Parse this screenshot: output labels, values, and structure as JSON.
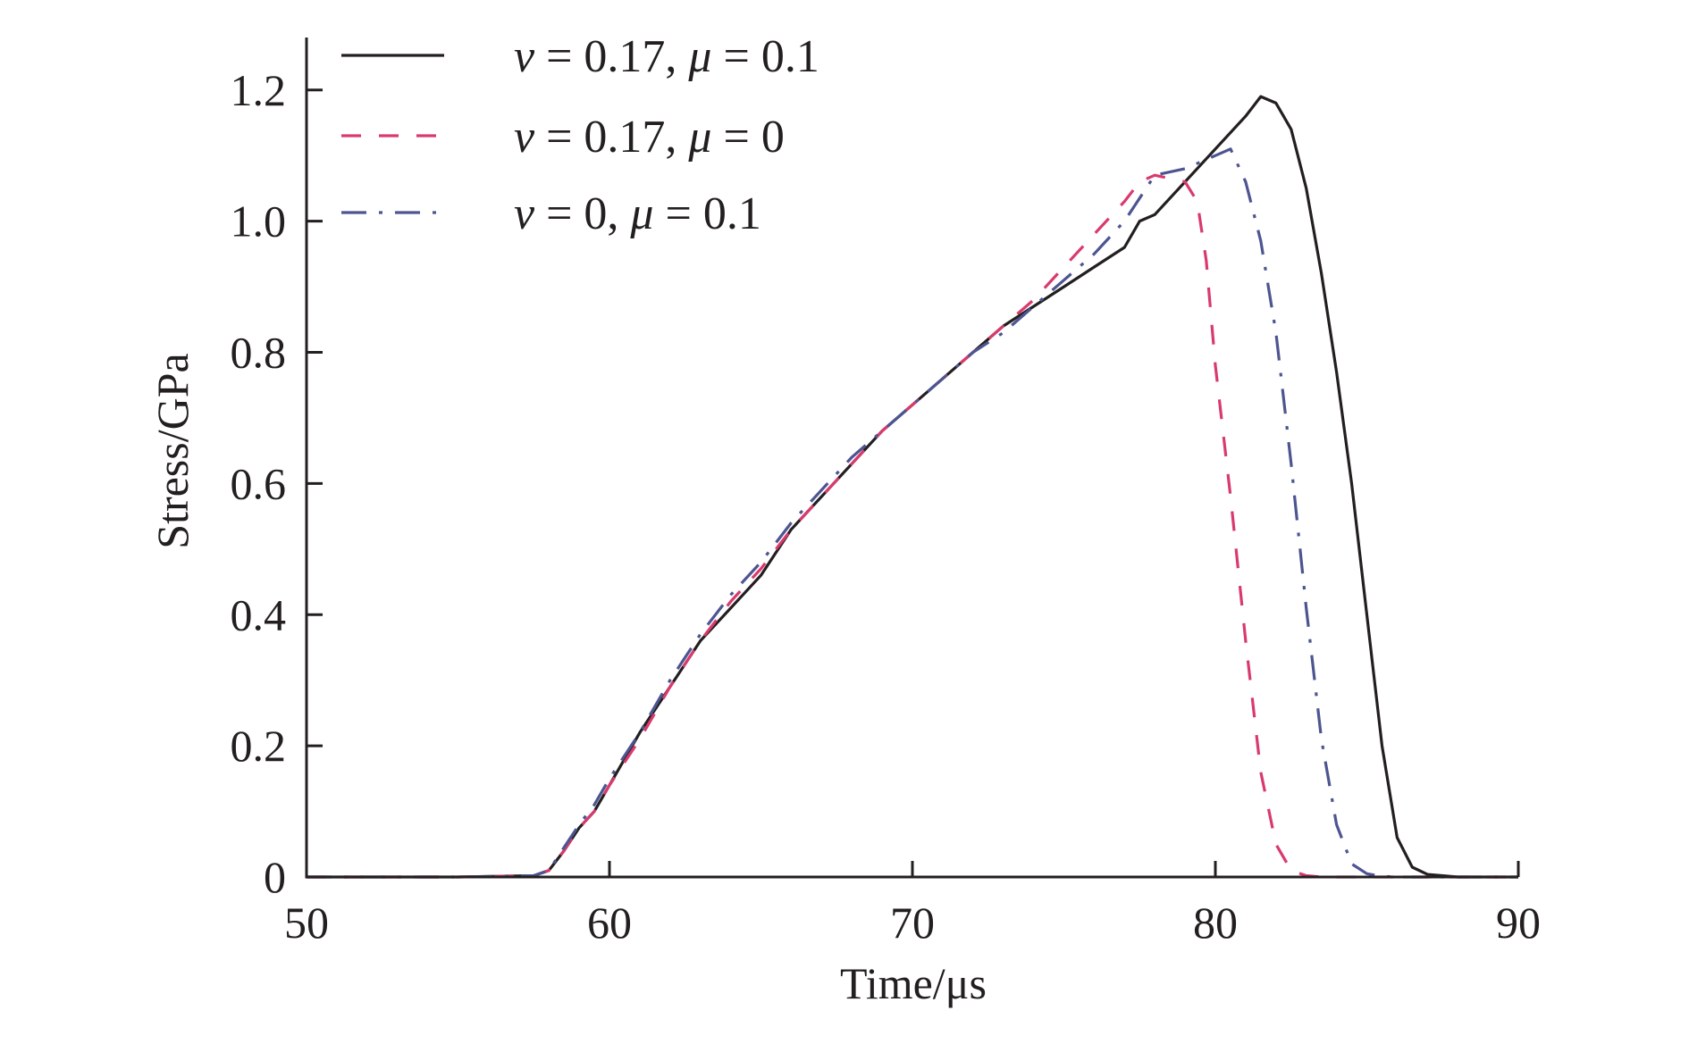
{
  "chart_data": {
    "type": "line",
    "xlabel": "Time/μs",
    "ylabel": "Stress/GPa",
    "xlim": [
      50,
      90
    ],
    "ylim": [
      0,
      1.28
    ],
    "x_ticks": [
      50,
      60,
      70,
      80,
      90
    ],
    "x_tick_labels": [
      "50",
      "60",
      "70",
      "80",
      "90"
    ],
    "y_ticks": [
      0,
      0.2,
      0.4,
      0.6,
      0.8,
      1.0,
      1.2
    ],
    "y_tick_labels": [
      "0",
      "0.2",
      "0.4",
      "0.6",
      "0.8",
      "1.0",
      "1.2"
    ],
    "grid": false,
    "legend_position": "top-left",
    "series": [
      {
        "name": "v = 0.17, μ = 0.1",
        "legend": {
          "sym1": "v",
          "eq1": " = 0.17, ",
          "sym2": "μ",
          "eq2": " = 0.1"
        },
        "color": "#231f20",
        "dash": "solid",
        "x": [
          50,
          55,
          57.5,
          58,
          58.5,
          59,
          59.5,
          60,
          61,
          62,
          63,
          64,
          65,
          66,
          67,
          68,
          69,
          70,
          71,
          72,
          73,
          74,
          75,
          76,
          77,
          77.5,
          78,
          79,
          80,
          81,
          81.5,
          82,
          82.5,
          83,
          83.5,
          84,
          84.5,
          85,
          85.5,
          86,
          86.5,
          87,
          88,
          90
        ],
        "y": [
          0,
          0,
          0.002,
          0.01,
          0.04,
          0.075,
          0.1,
          0.14,
          0.22,
          0.29,
          0.36,
          0.41,
          0.46,
          0.53,
          0.58,
          0.63,
          0.68,
          0.72,
          0.76,
          0.8,
          0.84,
          0.87,
          0.9,
          0.93,
          0.96,
          1.0,
          1.01,
          1.06,
          1.11,
          1.16,
          1.19,
          1.18,
          1.14,
          1.05,
          0.92,
          0.77,
          0.6,
          0.4,
          0.2,
          0.06,
          0.015,
          0.004,
          0,
          0
        ]
      },
      {
        "name": "v = 0.17, μ = 0",
        "legend": {
          "sym1": "v",
          "eq1": " = 0.17, ",
          "sym2": "μ",
          "eq2": " = 0"
        },
        "color": "#d93a6e",
        "dash": "22,20",
        "x": [
          50,
          55,
          57.5,
          58,
          58.5,
          59,
          59.5,
          60,
          61,
          62,
          63,
          64,
          65,
          66,
          67,
          68,
          69,
          70,
          71,
          72,
          73,
          74,
          75,
          76,
          77,
          77.5,
          78,
          79,
          79.4,
          79.7,
          80,
          80.5,
          81,
          81.5,
          82,
          82.5,
          83,
          83.5,
          85,
          90
        ],
        "y": [
          0,
          0,
          0.002,
          0.01,
          0.04,
          0.075,
          0.1,
          0.14,
          0.21,
          0.29,
          0.36,
          0.42,
          0.47,
          0.53,
          0.58,
          0.63,
          0.68,
          0.72,
          0.76,
          0.8,
          0.84,
          0.88,
          0.93,
          0.98,
          1.03,
          1.06,
          1.07,
          1.06,
          1.03,
          0.94,
          0.78,
          0.58,
          0.36,
          0.16,
          0.05,
          0.01,
          0.002,
          0,
          0,
          0
        ]
      },
      {
        "name": "v = 0, μ = 0.1",
        "legend": {
          "sym1": "v",
          "eq1": " = 0, ",
          "sym2": "μ",
          "eq2": " = 0.1"
        },
        "color": "#4d5590",
        "dash": "28,14,4,14",
        "x": [
          50,
          55,
          57.5,
          58,
          58.5,
          59,
          59.5,
          60,
          61,
          62,
          63,
          64,
          65,
          66,
          67,
          68,
          69,
          70,
          71,
          72,
          73,
          74,
          75,
          76,
          77,
          78,
          79,
          80,
          80.5,
          81,
          81.5,
          82,
          82.5,
          83,
          83.5,
          84,
          84.5,
          85,
          85.5,
          86,
          87,
          90
        ],
        "y": [
          0,
          0,
          0.002,
          0.01,
          0.045,
          0.08,
          0.11,
          0.15,
          0.22,
          0.3,
          0.37,
          0.43,
          0.48,
          0.54,
          0.59,
          0.64,
          0.68,
          0.72,
          0.76,
          0.8,
          0.83,
          0.87,
          0.91,
          0.95,
          1.0,
          1.07,
          1.08,
          1.1,
          1.11,
          1.06,
          0.97,
          0.83,
          0.63,
          0.41,
          0.21,
          0.08,
          0.02,
          0.005,
          0.001,
          0,
          0,
          0
        ]
      }
    ]
  }
}
